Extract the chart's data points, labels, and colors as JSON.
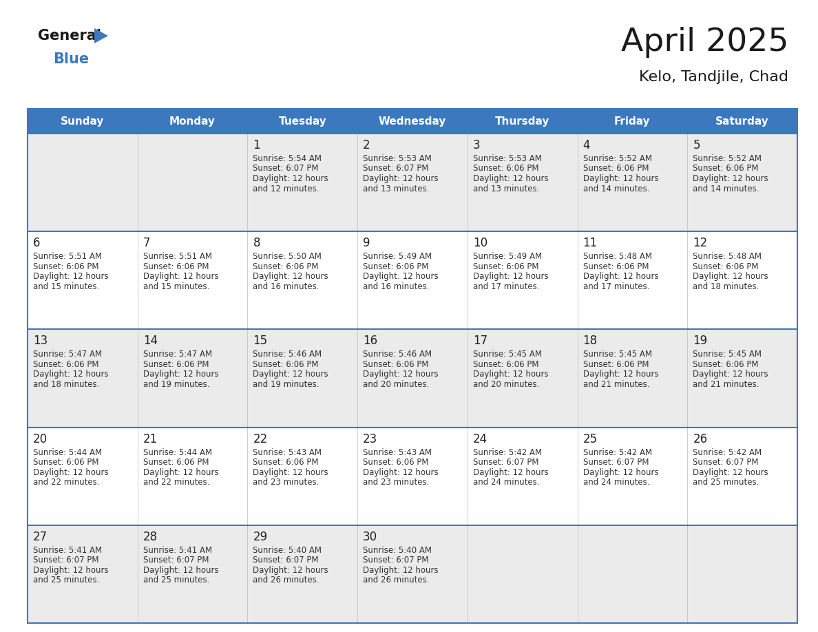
{
  "title": "April 2025",
  "subtitle": "Kelo, Tandjile, Chad",
  "header_color": "#3b78be",
  "header_text_color": "#ffffff",
  "row_colors": [
    "#ebebeb",
    "#ffffff",
    "#ebebeb",
    "#ffffff",
    "#ebebeb"
  ],
  "border_color": "#3b78be",
  "day_headers": [
    "Sunday",
    "Monday",
    "Tuesday",
    "Wednesday",
    "Thursday",
    "Friday",
    "Saturday"
  ],
  "days": [
    {
      "day": 1,
      "col": 2,
      "row": 0,
      "sunrise": "5:54 AM",
      "sunset": "6:07 PM",
      "dl_suffix": "12 minutes."
    },
    {
      "day": 2,
      "col": 3,
      "row": 0,
      "sunrise": "5:53 AM",
      "sunset": "6:07 PM",
      "dl_suffix": "13 minutes."
    },
    {
      "day": 3,
      "col": 4,
      "row": 0,
      "sunrise": "5:53 AM",
      "sunset": "6:06 PM",
      "dl_suffix": "13 minutes."
    },
    {
      "day": 4,
      "col": 5,
      "row": 0,
      "sunrise": "5:52 AM",
      "sunset": "6:06 PM",
      "dl_suffix": "14 minutes."
    },
    {
      "day": 5,
      "col": 6,
      "row": 0,
      "sunrise": "5:52 AM",
      "sunset": "6:06 PM",
      "dl_suffix": "14 minutes."
    },
    {
      "day": 6,
      "col": 0,
      "row": 1,
      "sunrise": "5:51 AM",
      "sunset": "6:06 PM",
      "dl_suffix": "15 minutes."
    },
    {
      "day": 7,
      "col": 1,
      "row": 1,
      "sunrise": "5:51 AM",
      "sunset": "6:06 PM",
      "dl_suffix": "15 minutes."
    },
    {
      "day": 8,
      "col": 2,
      "row": 1,
      "sunrise": "5:50 AM",
      "sunset": "6:06 PM",
      "dl_suffix": "16 minutes."
    },
    {
      "day": 9,
      "col": 3,
      "row": 1,
      "sunrise": "5:49 AM",
      "sunset": "6:06 PM",
      "dl_suffix": "16 minutes."
    },
    {
      "day": 10,
      "col": 4,
      "row": 1,
      "sunrise": "5:49 AM",
      "sunset": "6:06 PM",
      "dl_suffix": "17 minutes."
    },
    {
      "day": 11,
      "col": 5,
      "row": 1,
      "sunrise": "5:48 AM",
      "sunset": "6:06 PM",
      "dl_suffix": "17 minutes."
    },
    {
      "day": 12,
      "col": 6,
      "row": 1,
      "sunrise": "5:48 AM",
      "sunset": "6:06 PM",
      "dl_suffix": "18 minutes."
    },
    {
      "day": 13,
      "col": 0,
      "row": 2,
      "sunrise": "5:47 AM",
      "sunset": "6:06 PM",
      "dl_suffix": "18 minutes."
    },
    {
      "day": 14,
      "col": 1,
      "row": 2,
      "sunrise": "5:47 AM",
      "sunset": "6:06 PM",
      "dl_suffix": "19 minutes."
    },
    {
      "day": 15,
      "col": 2,
      "row": 2,
      "sunrise": "5:46 AM",
      "sunset": "6:06 PM",
      "dl_suffix": "19 minutes."
    },
    {
      "day": 16,
      "col": 3,
      "row": 2,
      "sunrise": "5:46 AM",
      "sunset": "6:06 PM",
      "dl_suffix": "20 minutes."
    },
    {
      "day": 17,
      "col": 4,
      "row": 2,
      "sunrise": "5:45 AM",
      "sunset": "6:06 PM",
      "dl_suffix": "20 minutes."
    },
    {
      "day": 18,
      "col": 5,
      "row": 2,
      "sunrise": "5:45 AM",
      "sunset": "6:06 PM",
      "dl_suffix": "21 minutes."
    },
    {
      "day": 19,
      "col": 6,
      "row": 2,
      "sunrise": "5:45 AM",
      "sunset": "6:06 PM",
      "dl_suffix": "21 minutes."
    },
    {
      "day": 20,
      "col": 0,
      "row": 3,
      "sunrise": "5:44 AM",
      "sunset": "6:06 PM",
      "dl_suffix": "22 minutes."
    },
    {
      "day": 21,
      "col": 1,
      "row": 3,
      "sunrise": "5:44 AM",
      "sunset": "6:06 PM",
      "dl_suffix": "22 minutes."
    },
    {
      "day": 22,
      "col": 2,
      "row": 3,
      "sunrise": "5:43 AM",
      "sunset": "6:06 PM",
      "dl_suffix": "23 minutes."
    },
    {
      "day": 23,
      "col": 3,
      "row": 3,
      "sunrise": "5:43 AM",
      "sunset": "6:06 PM",
      "dl_suffix": "23 minutes."
    },
    {
      "day": 24,
      "col": 4,
      "row": 3,
      "sunrise": "5:42 AM",
      "sunset": "6:07 PM",
      "dl_suffix": "24 minutes."
    },
    {
      "day": 25,
      "col": 5,
      "row": 3,
      "sunrise": "5:42 AM",
      "sunset": "6:07 PM",
      "dl_suffix": "24 minutes."
    },
    {
      "day": 26,
      "col": 6,
      "row": 3,
      "sunrise": "5:42 AM",
      "sunset": "6:07 PM",
      "dl_suffix": "25 minutes."
    },
    {
      "day": 27,
      "col": 0,
      "row": 4,
      "sunrise": "5:41 AM",
      "sunset": "6:07 PM",
      "dl_suffix": "25 minutes."
    },
    {
      "day": 28,
      "col": 1,
      "row": 4,
      "sunrise": "5:41 AM",
      "sunset": "6:07 PM",
      "dl_suffix": "25 minutes."
    },
    {
      "day": 29,
      "col": 2,
      "row": 4,
      "sunrise": "5:40 AM",
      "sunset": "6:07 PM",
      "dl_suffix": "26 minutes."
    },
    {
      "day": 30,
      "col": 3,
      "row": 4,
      "sunrise": "5:40 AM",
      "sunset": "6:07 PM",
      "dl_suffix": "26 minutes."
    }
  ],
  "num_rows": 5,
  "num_cols": 7,
  "logo_color_general": "#1a1a1a",
  "logo_color_blue": "#3b78be",
  "title_color": "#1a1a1a",
  "subtitle_color": "#1a1a1a",
  "cell_text_color": "#333333",
  "day_num_color": "#222222"
}
